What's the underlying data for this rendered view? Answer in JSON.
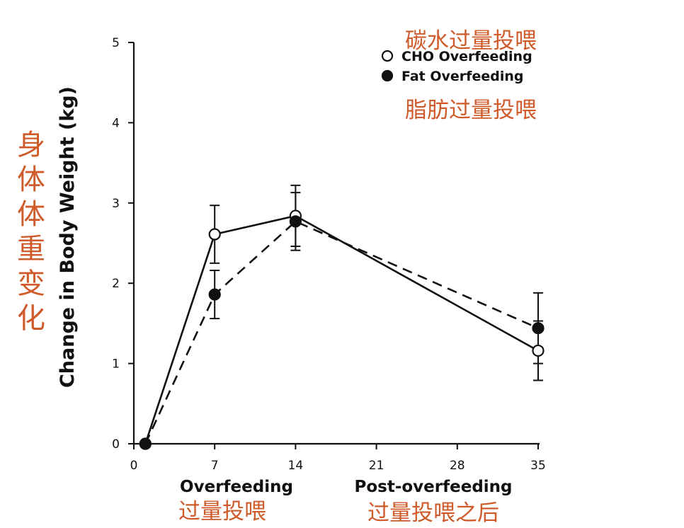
{
  "chart_data": {
    "type": "line",
    "ylabel": "Change in Body Weight (kg)",
    "ylabel_annotation": "身体体重变化",
    "x_ticks": [
      0,
      7,
      14,
      21,
      28,
      35
    ],
    "y_ticks": [
      0,
      1,
      2,
      3,
      4,
      5
    ],
    "xlim": [
      0,
      35
    ],
    "ylim": [
      0,
      5
    ],
    "grid": false,
    "legend": "top-right",
    "phase_labels": [
      {
        "text": "Overfeeding",
        "annotation": "过量投喂"
      },
      {
        "text": "Post-overfeeding",
        "annotation": "过量投喂之后"
      }
    ],
    "series": [
      {
        "name": "CHO Overfeeding",
        "annotation": "碳水过量投喂",
        "marker": "open-circle",
        "line": "solid",
        "x": [
          1,
          7,
          14,
          35
        ],
        "y": [
          0,
          2.61,
          2.84,
          1.16
        ],
        "err": [
          0,
          0.36,
          0.38,
          0.37
        ]
      },
      {
        "name": "Fat Overfeeding",
        "annotation": "脂肪过量投喂",
        "marker": "filled-circle",
        "line": "dashed",
        "x": [
          1,
          7,
          14,
          35
        ],
        "y": [
          0,
          1.86,
          2.77,
          1.44
        ],
        "err": [
          0,
          0.3,
          0.36,
          0.44
        ]
      }
    ]
  }
}
